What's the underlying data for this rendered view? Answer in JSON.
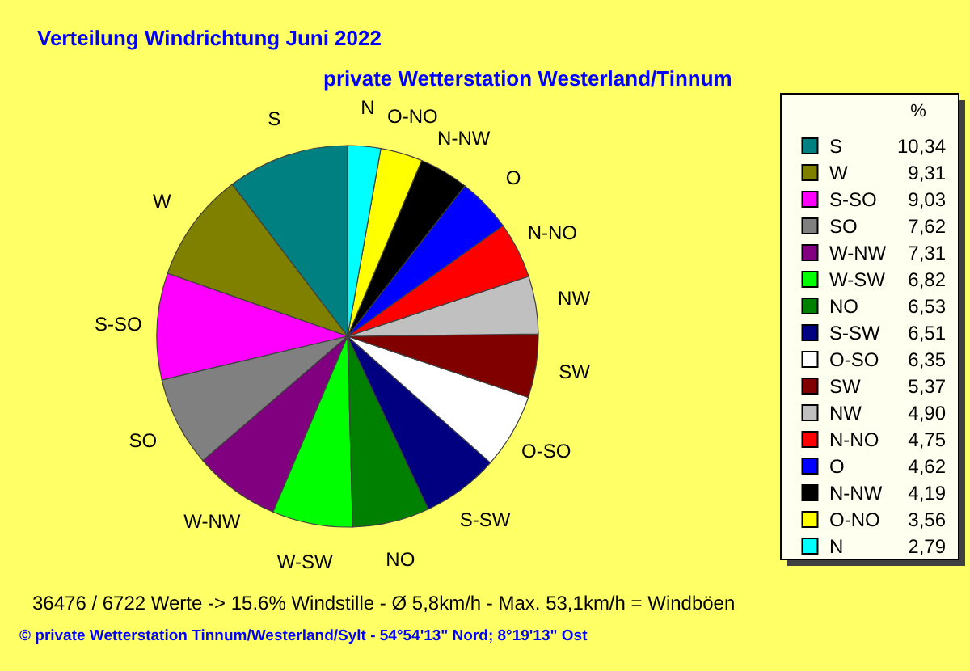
{
  "chart_data": {
    "type": "pie",
    "title": "Verteilung Windrichtung   Juni 2022",
    "subtitle": "private Wetterstation Westerland/Tinnum",
    "legend_title": "%",
    "legend": "right",
    "categories": [
      "S",
      "W",
      "S-SO",
      "SO",
      "W-NW",
      "W-SW",
      "NO",
      "S-SW",
      "O-SO",
      "SW",
      "NW",
      "N-NO",
      "O",
      "N-NW",
      "O-NO",
      "N"
    ],
    "values": [
      10.34,
      9.31,
      9.03,
      7.62,
      7.31,
      6.82,
      6.53,
      6.51,
      6.35,
      5.37,
      4.9,
      4.75,
      4.62,
      4.19,
      3.56,
      2.79
    ],
    "value_labels": [
      "10,34",
      "9,31",
      "9,03",
      "7,62",
      "7,31",
      "6,82",
      "6,53",
      "6,51",
      "6,35",
      "5,37",
      "4,90",
      "4,75",
      "4,62",
      "4,19",
      "3,56",
      "2,79"
    ],
    "colors": [
      "#008080",
      "#808000",
      "#ff00ff",
      "#808080",
      "#800080",
      "#00ff00",
      "#008000",
      "#000080",
      "#ffffff",
      "#800000",
      "#c0c0c0",
      "#ff0000",
      "#0000ff",
      "#000000",
      "#ffff00",
      "#00ffff"
    ],
    "annotations": [
      "36476 / 6722 Werte  -> 15.6% Windstille   -   Ø 5,8km/h  -  Max. 53,1km/h = Windböen",
      "© private Wetterstation Tinnum/Westerland/Sylt  -  54°54'13\" Nord; 8°19'13\" Ost"
    ]
  }
}
